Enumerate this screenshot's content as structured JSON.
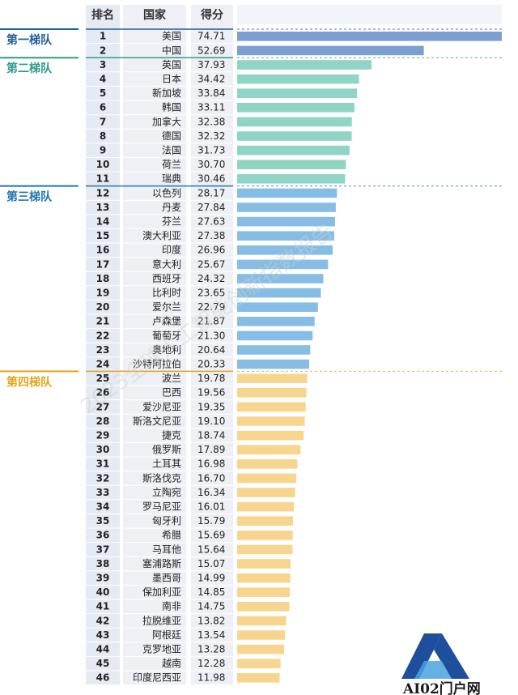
{
  "chart_data": {
    "type": "bar",
    "orientation": "horizontal",
    "columns": [
      "排名",
      "国家",
      "得分"
    ],
    "xlim": [
      0,
      74.71
    ],
    "grid": false,
    "tiers": [
      {
        "name": "第一梯队",
        "color": "#1f5f99",
        "bar_color": "#7c9fd0",
        "ranks": [
          1,
          2
        ]
      },
      {
        "name": "第二梯队",
        "color": "#2e9a8a",
        "bar_color": "#8fd4c5",
        "ranks": [
          3,
          11
        ]
      },
      {
        "name": "第三梯队",
        "color": "#1f75b0",
        "bar_color": "#86bde4",
        "ranks": [
          12,
          24
        ]
      },
      {
        "name": "第四梯队",
        "color": "#e3a51c",
        "bar_color": "#f8d58e",
        "ranks": [
          25,
          46
        ]
      }
    ],
    "rows": [
      {
        "rank": "1",
        "country": "美国",
        "score": 74.71
      },
      {
        "rank": "2",
        "country": "中国",
        "score": 52.69
      },
      {
        "rank": "3",
        "country": "英国",
        "score": 37.93
      },
      {
        "rank": "4",
        "country": "日本",
        "score": 34.42
      },
      {
        "rank": "5",
        "country": "新加坡",
        "score": 33.84
      },
      {
        "rank": "6",
        "country": "韩国",
        "score": 33.11
      },
      {
        "rank": "7",
        "country": "加拿大",
        "score": 32.38
      },
      {
        "rank": "8",
        "country": "德国",
        "score": 32.32
      },
      {
        "rank": "9",
        "country": "法国",
        "score": 31.73
      },
      {
        "rank": "10",
        "country": "荷兰",
        "score": 30.7
      },
      {
        "rank": "11",
        "country": "瑞典",
        "score": 30.46
      },
      {
        "rank": "12",
        "country": "以色列",
        "score": 28.17
      },
      {
        "rank": "13",
        "country": "丹麦",
        "score": 27.84
      },
      {
        "rank": "14",
        "country": "芬兰",
        "score": 27.63
      },
      {
        "rank": "15",
        "country": "澳大利亚",
        "score": 27.38
      },
      {
        "rank": "16",
        "country": "印度",
        "score": 26.96
      },
      {
        "rank": "17",
        "country": "意大利",
        "score": 25.67
      },
      {
        "rank": "18",
        "country": "西班牙",
        "score": 24.32
      },
      {
        "rank": "19",
        "country": "比利时",
        "score": 23.65
      },
      {
        "rank": "20",
        "country": "爱尔兰",
        "score": 22.79
      },
      {
        "rank": "21",
        "country": "卢森堡",
        "score": 21.87
      },
      {
        "rank": "22",
        "country": "葡萄牙",
        "score": 21.3
      },
      {
        "rank": "23",
        "country": "奥地利",
        "score": 20.64
      },
      {
        "rank": "24",
        "country": "沙特阿拉伯",
        "score": 20.33
      },
      {
        "rank": "25",
        "country": "波兰",
        "score": 19.78
      },
      {
        "rank": "26",
        "country": "巴西",
        "score": 19.56
      },
      {
        "rank": "27",
        "country": "爱沙尼亚",
        "score": 19.35
      },
      {
        "rank": "28",
        "country": "斯洛文尼亚",
        "score": 19.1
      },
      {
        "rank": "29",
        "country": "捷克",
        "score": 18.74
      },
      {
        "rank": "30",
        "country": "俄罗斯",
        "score": 17.89
      },
      {
        "rank": "31",
        "country": "土耳其",
        "score": 16.98
      },
      {
        "rank": "32",
        "country": "斯洛伐克",
        "score": 16.7
      },
      {
        "rank": "33",
        "country": "立陶宛",
        "score": 16.34
      },
      {
        "rank": "34",
        "country": "罗马尼亚",
        "score": 16.01
      },
      {
        "rank": "35",
        "country": "匈牙利",
        "score": 15.79
      },
      {
        "rank": "36",
        "country": "希腊",
        "score": 15.69
      },
      {
        "rank": "37",
        "country": "马耳他",
        "score": 15.64
      },
      {
        "rank": "38",
        "country": "塞浦路斯",
        "score": 15.07
      },
      {
        "rank": "39",
        "country": "墨西哥",
        "score": 14.99
      },
      {
        "rank": "40",
        "country": "保加利亚",
        "score": 14.85
      },
      {
        "rank": "41",
        "country": "南非",
        "score": 14.75
      },
      {
        "rank": "42",
        "country": "拉脱维亚",
        "score": 13.82
      },
      {
        "rank": "43",
        "country": "阿根廷",
        "score": 13.54
      },
      {
        "rank": "44",
        "country": "克罗地亚",
        "score": 13.28
      },
      {
        "rank": "45",
        "country": "越南",
        "score": 12.28
      },
      {
        "rank": "46",
        "country": "印度尼西亚",
        "score": 11.98
      }
    ]
  },
  "watermark": "2023全球人工智能创新指数报告",
  "logo": {
    "text": "AI02门户网",
    "primary_color": "#1f4e9c",
    "accent_color": "#4aa3df"
  }
}
